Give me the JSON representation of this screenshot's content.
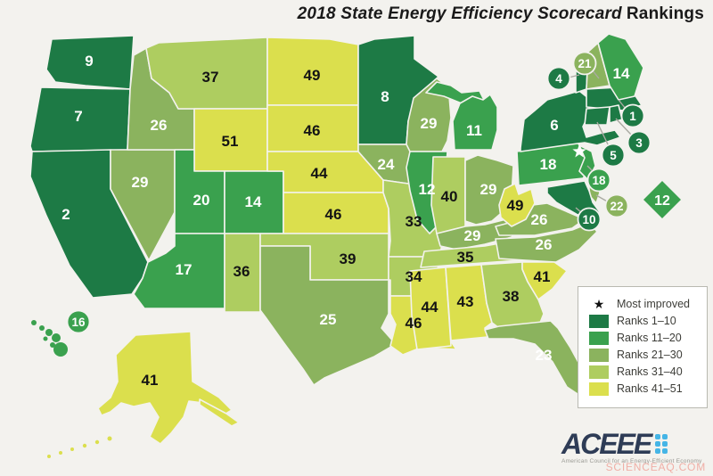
{
  "title": {
    "italic_part": "2018 State Energy Efficiency Scorecard",
    "plain_part": "Rankings"
  },
  "legend": {
    "most_improved_label": "Most improved",
    "bands": [
      {
        "label": "Ranks 1–10",
        "color": "#1d7a45"
      },
      {
        "label": "Ranks 11–20",
        "color": "#3aa14e"
      },
      {
        "label": "Ranks 21–30",
        "color": "#8bb35e"
      },
      {
        "label": "Ranks 31–40",
        "color": "#aecd60"
      },
      {
        "label": "Ranks 41–51",
        "color": "#dbdf4d"
      }
    ]
  },
  "logo": {
    "name": "ACEEE",
    "tagline": "American Council for an Energy-Efficient Economy",
    "text_color": "#2e3c56",
    "dots_color": "#45b5e6"
  },
  "watermark": "SCIENCEAQ.COM",
  "chart_data": {
    "type": "heatmap",
    "subtype": "us-state-choropleth",
    "title": "2018 State Energy Efficiency Scorecard Rankings",
    "value_meaning": "State rank (1 = most energy efficient, 51 = least)",
    "legend_position": "bottom-right",
    "band_labels": [
      "Ranks 1–10",
      "Ranks 11–20",
      "Ranks 21–30",
      "Ranks 31–40",
      "Ranks 41–51"
    ],
    "most_improved_states": [
      "NJ"
    ],
    "callout_states": [
      "VT",
      "NH",
      "MA",
      "RI",
      "CT",
      "NJ",
      "DE",
      "MD",
      "DC",
      "HI"
    ],
    "states": [
      {
        "id": "WA",
        "rank": 9
      },
      {
        "id": "OR",
        "rank": 7
      },
      {
        "id": "CA",
        "rank": 2
      },
      {
        "id": "NV",
        "rank": 29
      },
      {
        "id": "ID",
        "rank": 26
      },
      {
        "id": "MT",
        "rank": 37
      },
      {
        "id": "WY",
        "rank": 51
      },
      {
        "id": "UT",
        "rank": 20
      },
      {
        "id": "CO",
        "rank": 14
      },
      {
        "id": "AZ",
        "rank": 17
      },
      {
        "id": "NM",
        "rank": 36
      },
      {
        "id": "ND",
        "rank": 49
      },
      {
        "id": "SD",
        "rank": 46
      },
      {
        "id": "NE",
        "rank": 44
      },
      {
        "id": "KS",
        "rank": 46
      },
      {
        "id": "OK",
        "rank": 39
      },
      {
        "id": "TX",
        "rank": 25
      },
      {
        "id": "MN",
        "rank": 8
      },
      {
        "id": "IA",
        "rank": 24
      },
      {
        "id": "MO",
        "rank": 33
      },
      {
        "id": "AR",
        "rank": 34
      },
      {
        "id": "LA",
        "rank": 46
      },
      {
        "id": "WI",
        "rank": 29
      },
      {
        "id": "IL",
        "rank": 12
      },
      {
        "id": "MI",
        "rank": 11
      },
      {
        "id": "IN",
        "rank": 40
      },
      {
        "id": "OH",
        "rank": 29
      },
      {
        "id": "KY",
        "rank": 29
      },
      {
        "id": "TN",
        "rank": 35
      },
      {
        "id": "MS",
        "rank": 44
      },
      {
        "id": "AL",
        "rank": 43
      },
      {
        "id": "GA",
        "rank": 38
      },
      {
        "id": "FL",
        "rank": 23
      },
      {
        "id": "SC",
        "rank": 41
      },
      {
        "id": "NC",
        "rank": 26
      },
      {
        "id": "VA",
        "rank": 26
      },
      {
        "id": "WV",
        "rank": 49
      },
      {
        "id": "PA",
        "rank": 18
      },
      {
        "id": "NY",
        "rank": 6
      },
      {
        "id": "NJ",
        "rank": 18
      },
      {
        "id": "DE",
        "rank": 22
      },
      {
        "id": "MD",
        "rank": 10
      },
      {
        "id": "DC",
        "rank": 12
      },
      {
        "id": "VT",
        "rank": 4
      },
      {
        "id": "NH",
        "rank": 21
      },
      {
        "id": "MA",
        "rank": 1
      },
      {
        "id": "RI",
        "rank": 3
      },
      {
        "id": "CT",
        "rank": 5
      },
      {
        "id": "ME",
        "rank": 14
      },
      {
        "id": "AK",
        "rank": 41
      },
      {
        "id": "HI",
        "rank": 16
      }
    ]
  }
}
